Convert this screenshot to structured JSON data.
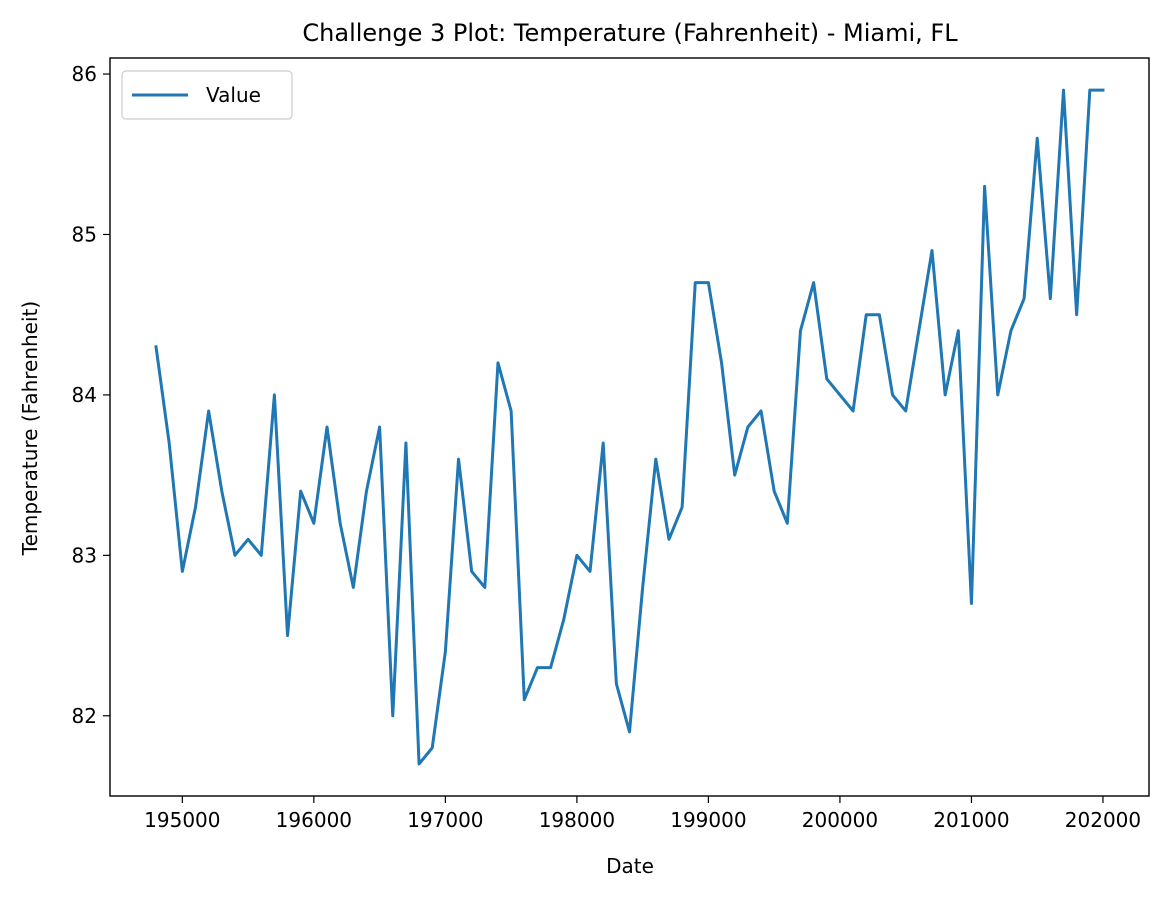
{
  "chart_data": {
    "type": "line",
    "title": "Challenge 3 Plot: Temperature (Fahrenheit) - Miami, FL",
    "xlabel": "Date",
    "ylabel": "Temperature (Fahrenheit)",
    "xlim": [
      194450,
      202350
    ],
    "ylim": [
      81.5,
      86.1
    ],
    "x_ticks": [
      195000,
      196000,
      197000,
      198000,
      199000,
      200000,
      201000,
      202000
    ],
    "y_ticks": [
      82,
      83,
      84,
      85,
      86
    ],
    "grid": false,
    "legend_position": "upper-left",
    "series": [
      {
        "name": "Value",
        "color": "#1f77b4",
        "x": [
          194800,
          194900,
          195000,
          195100,
          195200,
          195300,
          195400,
          195500,
          195600,
          195700,
          195800,
          195900,
          196000,
          196100,
          196200,
          196300,
          196400,
          196500,
          196600,
          196700,
          196800,
          196900,
          197000,
          197100,
          197200,
          197300,
          197400,
          197500,
          197600,
          197700,
          197800,
          197900,
          198000,
          198100,
          198200,
          198300,
          198400,
          198500,
          198600,
          198700,
          198800,
          198900,
          199000,
          199100,
          199200,
          199300,
          199400,
          199500,
          199600,
          199700,
          199800,
          199900,
          200000,
          200100,
          200200,
          200300,
          200400,
          200500,
          200600,
          200700,
          200800,
          200900,
          201000,
          201100,
          201200,
          201300,
          201400,
          201500,
          201600,
          201700,
          201800,
          201900,
          202000
        ],
        "y": [
          84.3,
          83.7,
          82.9,
          83.3,
          83.9,
          83.4,
          83.0,
          83.1,
          83.0,
          84.0,
          82.5,
          83.4,
          83.2,
          83.8,
          83.2,
          82.8,
          83.4,
          83.8,
          82.0,
          83.7,
          81.7,
          81.8,
          82.4,
          83.6,
          82.9,
          82.8,
          84.2,
          83.9,
          82.1,
          82.3,
          82.3,
          82.6,
          83.0,
          82.9,
          83.7,
          82.2,
          81.9,
          82.8,
          83.6,
          83.1,
          83.3,
          84.7,
          84.7,
          84.2,
          83.5,
          83.8,
          83.9,
          83.4,
          83.2,
          84.4,
          84.7,
          84.1,
          84.0,
          83.9,
          84.5,
          84.5,
          84.0,
          83.9,
          84.4,
          84.9,
          84.0,
          84.4,
          82.7,
          85.3,
          84.0,
          84.4,
          84.6,
          85.6,
          84.6,
          85.9,
          84.5,
          85.9,
          85.9
        ]
      }
    ]
  }
}
